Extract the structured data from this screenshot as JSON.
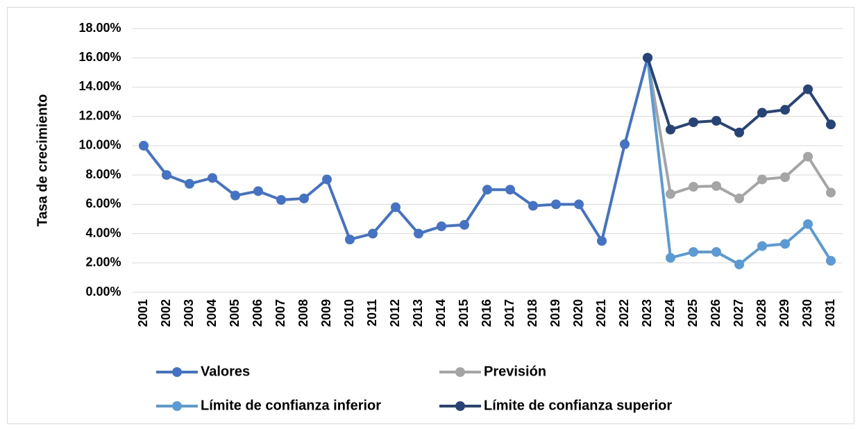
{
  "chart_data": {
    "type": "line",
    "y_label": "Tasa de crecimiento",
    "categories": [
      "2001",
      "2002",
      "2003",
      "2004",
      "2005",
      "2006",
      "2007",
      "2008",
      "2009",
      "2010",
      "2011",
      "2012",
      "2013",
      "2014",
      "2015",
      "2016",
      "2017",
      "2018",
      "2019",
      "2020",
      "2021",
      "2022",
      "2023",
      "2024",
      "2025",
      "2026",
      "2027",
      "2028",
      "2029",
      "2030",
      "2031"
    ],
    "series": [
      {
        "name": "Valores",
        "color": "#4472c4",
        "values": [
          10.0,
          8.0,
          7.4,
          7.8,
          6.6,
          6.9,
          6.3,
          6.4,
          7.7,
          3.6,
          4.0,
          5.8,
          4.0,
          4.5,
          4.6,
          7.0,
          7.0,
          5.9,
          6.0,
          6.0,
          3.5,
          10.1,
          16.0,
          null,
          null,
          null,
          null,
          null,
          null,
          null,
          null
        ]
      },
      {
        "name": "Previsión",
        "color": "#a5a5a5",
        "values": [
          null,
          null,
          null,
          null,
          null,
          null,
          null,
          null,
          null,
          null,
          null,
          null,
          null,
          null,
          null,
          null,
          null,
          null,
          null,
          null,
          null,
          null,
          16.0,
          6.7,
          7.2,
          7.25,
          6.4,
          7.7,
          7.85,
          9.25,
          6.8
        ]
      },
      {
        "name": "Límite de confianza inferior",
        "color": "#5b9bd5",
        "values": [
          null,
          null,
          null,
          null,
          null,
          null,
          null,
          null,
          null,
          null,
          null,
          null,
          null,
          null,
          null,
          null,
          null,
          null,
          null,
          null,
          null,
          null,
          16.0,
          2.35,
          2.75,
          2.75,
          1.9,
          3.15,
          3.3,
          4.65,
          2.15
        ]
      },
      {
        "name": "Límite de confianza superior",
        "color": "#264478",
        "values": [
          null,
          null,
          null,
          null,
          null,
          null,
          null,
          null,
          null,
          null,
          null,
          null,
          null,
          null,
          null,
          null,
          null,
          null,
          null,
          null,
          null,
          null,
          16.0,
          11.1,
          11.6,
          11.7,
          10.9,
          12.25,
          12.45,
          13.85,
          11.45
        ]
      }
    ],
    "ylim": [
      0,
      18
    ],
    "yticks": [
      {
        "value": 0,
        "label": "0.00%"
      },
      {
        "value": 2,
        "label": "2.00%"
      },
      {
        "value": 4,
        "label": "4.00%"
      },
      {
        "value": 6,
        "label": "6.00%"
      },
      {
        "value": 8,
        "label": "8.00%"
      },
      {
        "value": 10,
        "label": "10.00%"
      },
      {
        "value": 12,
        "label": "12.00%"
      },
      {
        "value": 14,
        "label": "14.00%"
      },
      {
        "value": 16,
        "label": "16.00%"
      },
      {
        "value": 18,
        "label": "18.00%"
      }
    ],
    "grid": true,
    "legend": "bottom"
  }
}
